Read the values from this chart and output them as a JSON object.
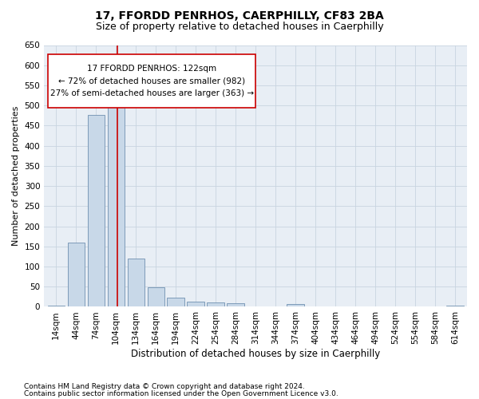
{
  "title": "17, FFORDD PENRHOS, CAERPHILLY, CF83 2BA",
  "subtitle": "Size of property relative to detached houses in Caerphilly",
  "xlabel": "Distribution of detached houses by size in Caerphilly",
  "ylabel": "Number of detached properties",
  "bar_color": "#c8d8e8",
  "bar_edge_color": "#7090b0",
  "categories": [
    "14sqm",
    "44sqm",
    "74sqm",
    "104sqm",
    "134sqm",
    "164sqm",
    "194sqm",
    "224sqm",
    "254sqm",
    "284sqm",
    "314sqm",
    "344sqm",
    "374sqm",
    "404sqm",
    "434sqm",
    "464sqm",
    "494sqm",
    "524sqm",
    "554sqm",
    "584sqm",
    "614sqm"
  ],
  "values": [
    3,
    160,
    477,
    505,
    120,
    49,
    22,
    12,
    11,
    8,
    0,
    0,
    6,
    0,
    0,
    0,
    0,
    0,
    0,
    0,
    3
  ],
  "ylim": [
    0,
    650
  ],
  "yticks": [
    0,
    50,
    100,
    150,
    200,
    250,
    300,
    350,
    400,
    450,
    500,
    550,
    600,
    650
  ],
  "property_line_x": 3.08,
  "property_line_color": "#cc0000",
  "annotation_box_text": "17 FFORDD PENRHOS: 122sqm\n← 72% of detached houses are smaller (982)\n27% of semi-detached houses are larger (363) →",
  "annotation_box_color": "#ffffff",
  "annotation_box_edge_color": "#cc0000",
  "background_color": "#ffffff",
  "grid_color": "#c8d4e0",
  "footer_line1": "Contains HM Land Registry data © Crown copyright and database right 2024.",
  "footer_line2": "Contains public sector information licensed under the Open Government Licence v3.0.",
  "title_fontsize": 10,
  "subtitle_fontsize": 9,
  "xlabel_fontsize": 8.5,
  "ylabel_fontsize": 8,
  "tick_fontsize": 7.5,
  "annotation_fontsize": 7.5,
  "footer_fontsize": 6.5
}
